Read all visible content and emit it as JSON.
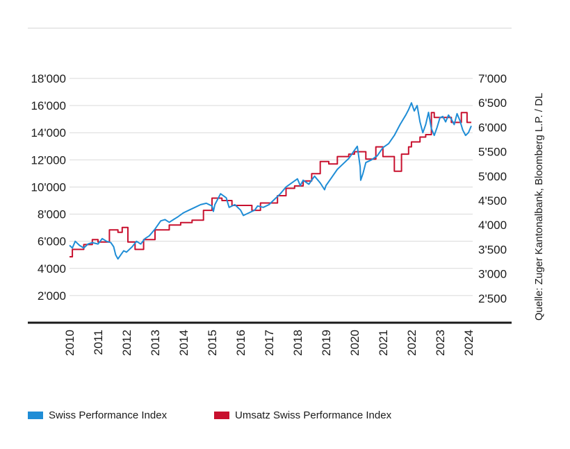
{
  "chart_data": {
    "type": "line",
    "title": "",
    "source": "Quelle: Zuger Kantonalbank, Bloomberg L.P. / DL",
    "colors": {
      "spi": "#1f8dd6",
      "umsatz": "#c8102e",
      "grid": "#d9d9d9",
      "axis": "#1a1a1a"
    },
    "x_ticks": [
      "2010",
      "2011",
      "2012",
      "2013",
      "2014",
      "2015",
      "2016",
      "2017",
      "2018",
      "2019",
      "2020",
      "2021",
      "2022",
      "2023",
      "2024"
    ],
    "xlim": [
      2010,
      2024.1
    ],
    "y_left": {
      "label": "",
      "ticks": [
        "2'000",
        "4'000",
        "6'000",
        "8'000",
        "10'000",
        "12'000",
        "14'000",
        "16'000",
        "18'000"
      ],
      "values": [
        2000,
        4000,
        6000,
        8000,
        10000,
        12000,
        14000,
        16000,
        18000
      ],
      "ylim": [
        0,
        18000
      ]
    },
    "y_right": {
      "label": "",
      "ticks": [
        "2'500",
        "3'000",
        "3'500",
        "4'000",
        "4'500",
        "5'000",
        "5'500",
        "6'000",
        "6'500",
        "7'000"
      ],
      "values": [
        2500,
        3000,
        3500,
        4000,
        4500,
        5000,
        5500,
        6000,
        6500,
        7000
      ],
      "ylim": [
        2000,
        7000
      ]
    },
    "grid": true,
    "legend": [
      {
        "label": "Swiss Performance Index",
        "color": "#1f8dd6"
      },
      {
        "label": "Umsatz Swiss Performance Index",
        "color": "#c8102e"
      }
    ],
    "series": [
      {
        "name": "Swiss Performance Index",
        "axis": "left",
        "x": [
          2010.0,
          2010.1,
          2010.2,
          2010.35,
          2010.5,
          2010.65,
          2010.8,
          2011.0,
          2011.15,
          2011.3,
          2011.45,
          2011.55,
          2011.62,
          2011.7,
          2011.8,
          2011.9,
          2012.0,
          2012.2,
          2012.35,
          2012.5,
          2012.65,
          2012.8,
          2013.0,
          2013.2,
          2013.35,
          2013.5,
          2013.65,
          2013.8,
          2014.0,
          2014.2,
          2014.4,
          2014.6,
          2014.8,
          2015.0,
          2015.05,
          2015.1,
          2015.3,
          2015.5,
          2015.6,
          2015.8,
          2016.0,
          2016.1,
          2016.3,
          2016.5,
          2016.6,
          2016.8,
          2017.0,
          2017.2,
          2017.4,
          2017.6,
          2017.8,
          2018.0,
          2018.1,
          2018.2,
          2018.4,
          2018.6,
          2018.8,
          2018.95,
          2019.0,
          2019.2,
          2019.4,
          2019.6,
          2019.8,
          2020.0,
          2020.1,
          2020.2,
          2020.22,
          2020.3,
          2020.4,
          2020.6,
          2020.8,
          2021.0,
          2021.2,
          2021.4,
          2021.6,
          2021.8,
          2021.9,
          2022.0,
          2022.1,
          2022.2,
          2022.3,
          2022.4,
          2022.5,
          2022.6,
          2022.7,
          2022.8,
          2022.9,
          2023.0,
          2023.1,
          2023.2,
          2023.3,
          2023.4,
          2023.5,
          2023.6,
          2023.7,
          2023.8,
          2023.9,
          2024.0,
          2024.1
        ],
        "y": [
          5700,
          5500,
          6000,
          5700,
          5500,
          5800,
          5900,
          5800,
          6200,
          6000,
          5900,
          5600,
          5000,
          4700,
          5000,
          5300,
          5200,
          5600,
          6000,
          5800,
          6200,
          6400,
          6900,
          7500,
          7600,
          7400,
          7600,
          7800,
          8100,
          8300,
          8500,
          8700,
          8800,
          8600,
          8200,
          8700,
          9500,
          9200,
          8500,
          8700,
          8300,
          7900,
          8100,
          8300,
          8600,
          8500,
          8700,
          9100,
          9500,
          10000,
          10300,
          10600,
          10100,
          10500,
          10200,
          10800,
          10300,
          9800,
          10100,
          10700,
          11300,
          11700,
          12100,
          12700,
          13000,
          11500,
          10500,
          11000,
          11800,
          12000,
          12300,
          12900,
          13200,
          13800,
          14600,
          15300,
          15700,
          16200,
          15600,
          16000,
          14800,
          14000,
          14600,
          15500,
          14300,
          13800,
          14400,
          15100,
          15200,
          14800,
          15300,
          15000,
          14600,
          15400,
          14900,
          14200,
          13800,
          14000,
          14500
        ]
      },
      {
        "name": "Umsatz Swiss Performance Index",
        "axis": "right",
        "x": [
          2010.0,
          2010.1,
          2010.1,
          2010.5,
          2010.5,
          2010.8,
          2010.8,
          2011.0,
          2011.0,
          2011.4,
          2011.4,
          2011.7,
          2011.7,
          2011.85,
          2011.85,
          2012.05,
          2012.05,
          2012.3,
          2012.3,
          2012.6,
          2012.6,
          2013.0,
          2013.0,
          2013.5,
          2013.5,
          2013.9,
          2013.9,
          2014.3,
          2014.3,
          2014.7,
          2014.7,
          2015.0,
          2015.0,
          2015.35,
          2015.35,
          2015.7,
          2015.7,
          2016.4,
          2016.4,
          2016.7,
          2016.7,
          2017.3,
          2017.3,
          2017.6,
          2017.6,
          2017.9,
          2017.9,
          2018.2,
          2018.2,
          2018.5,
          2018.5,
          2018.8,
          2018.8,
          2019.1,
          2019.1,
          2019.4,
          2019.4,
          2019.8,
          2019.8,
          2020.0,
          2020.0,
          2020.4,
          2020.4,
          2020.75,
          2020.75,
          2021.0,
          2021.0,
          2021.4,
          2021.4,
          2021.65,
          2021.65,
          2021.9,
          2021.9,
          2022.0,
          2022.0,
          2022.3,
          2022.3,
          2022.5,
          2022.5,
          2022.7,
          2022.7,
          2022.8,
          2022.8,
          2023.4,
          2023.4,
          2023.75,
          2023.75,
          2023.95,
          2023.95,
          2024.1
        ],
        "y": [
          3350,
          3350,
          3500,
          3500,
          3600,
          3600,
          3700,
          3700,
          3650,
          3650,
          3900,
          3900,
          3850,
          3850,
          3950,
          3950,
          3650,
          3650,
          3500,
          3500,
          3700,
          3700,
          3900,
          3900,
          4000,
          4000,
          4050,
          4050,
          4100,
          4100,
          4300,
          4300,
          4550,
          4550,
          4500,
          4500,
          4400,
          4400,
          4300,
          4300,
          4450,
          4450,
          4600,
          4600,
          4750,
          4750,
          4800,
          4800,
          4900,
          4900,
          5050,
          5050,
          5300,
          5300,
          5250,
          5250,
          5400,
          5400,
          5450,
          5450,
          5500,
          5500,
          5350,
          5350,
          5600,
          5600,
          5400,
          5400,
          5100,
          5100,
          5450,
          5450,
          5600,
          5600,
          5700,
          5700,
          5800,
          5800,
          5850,
          5850,
          6300,
          6300,
          6200,
          6200,
          6100,
          6100,
          6300,
          6300,
          6100,
          6100
        ]
      }
    ]
  }
}
